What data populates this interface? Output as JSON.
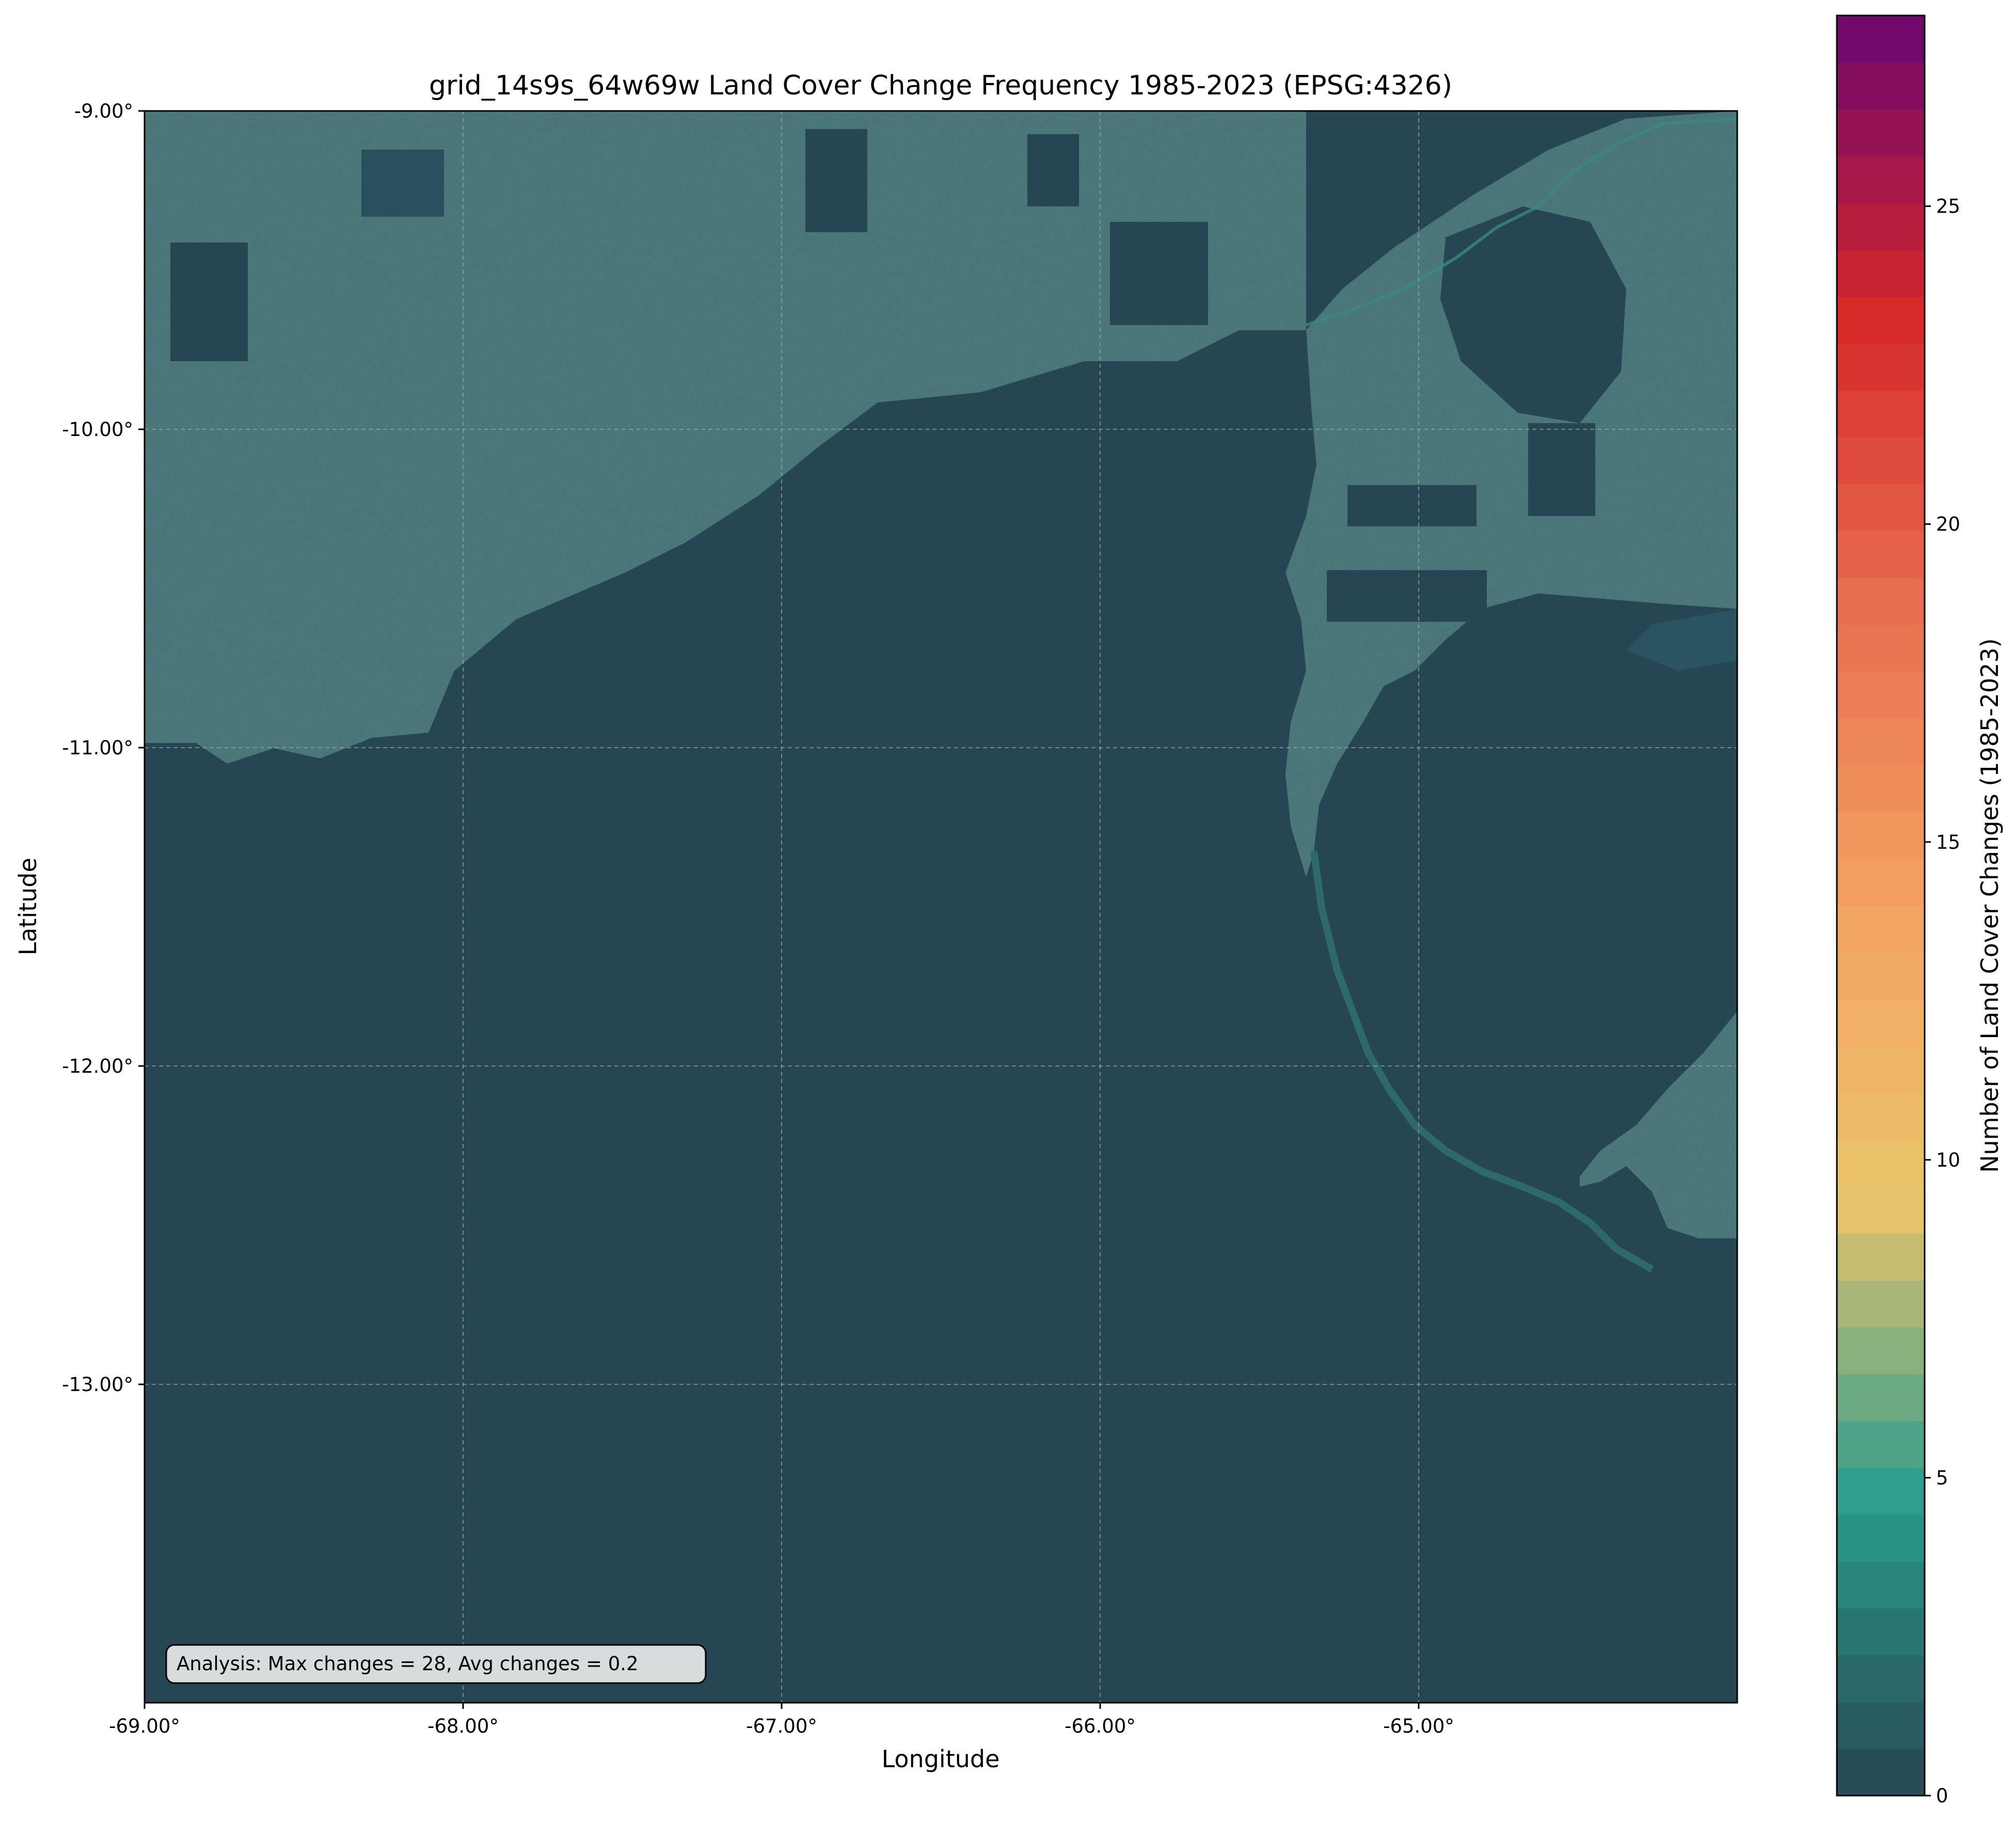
{
  "title": "grid_14s9s_64w69w Land Cover Change Frequency 1985-2023 (EPSG:4326)",
  "xlabel": "Longitude",
  "ylabel": "Latitude",
  "annotation": "Analysis: Max changes = 28, Avg changes = 0.2",
  "chart_data": {
    "type": "heatmap",
    "title": "grid_14s9s_64w69w Land Cover Change Frequency 1985-2023 (EPSG:4326)",
    "xlabel": "Longitude",
    "ylabel": "Latitude",
    "xlim": [
      -69.0,
      -64.0
    ],
    "ylim": [
      -14.0,
      -9.0
    ],
    "x_ticks": [
      -69.0,
      -68.0,
      -67.0,
      -66.0,
      -65.0
    ],
    "x_tick_labels": [
      "-69.00°",
      "-68.00°",
      "-67.00°",
      "-66.00°",
      "-65.00°"
    ],
    "y_ticks": [
      -9.0,
      -10.0,
      -11.0,
      -12.0,
      -13.0
    ],
    "y_tick_labels": [
      "-9.00°",
      "-10.00°",
      "-11.00°",
      "-12.00°",
      "-13.00°"
    ],
    "grid": true,
    "colorbar": {
      "label": "Number of Land Cover Changes (1985-2023)",
      "min": 0,
      "max": 28,
      "bins": 38,
      "ticks": [
        0,
        5,
        10,
        15,
        20,
        25
      ],
      "colors": [
        "#264653",
        "#2a9d8f",
        "#e9c46a",
        "#f4a261",
        "#e76f51",
        "#d62828",
        "#6a0572"
      ]
    },
    "stats": {
      "max_changes": 28,
      "avg_changes": 0.2
    },
    "background_color": "#264653",
    "region_color": "#2d5a5e"
  }
}
